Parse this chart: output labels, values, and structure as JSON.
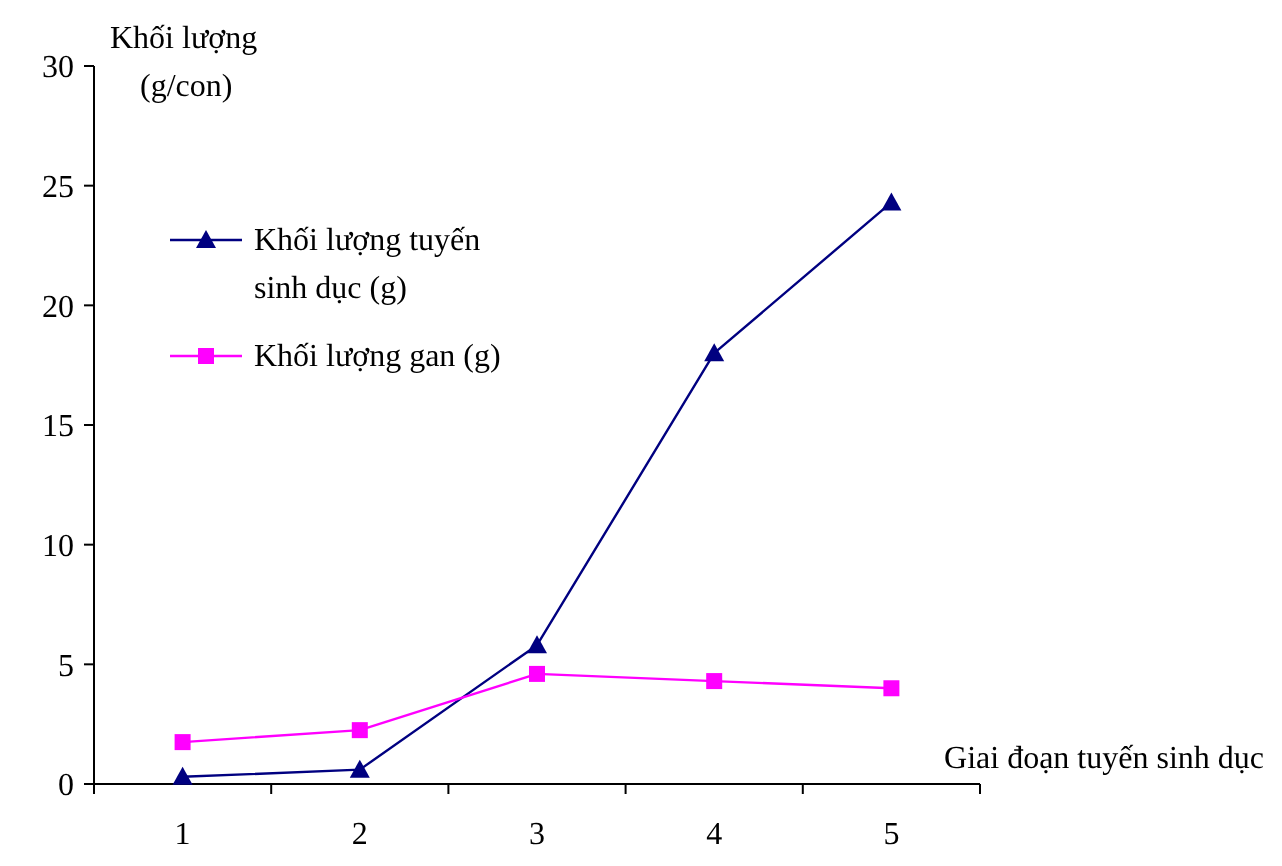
{
  "chart_data": {
    "type": "line",
    "ylabel": "Khối lượng\n(g/con)",
    "xlabel": "Giai đoạn tuyến sinh dục",
    "categories": [
      "1",
      "2",
      "3",
      "4",
      "5"
    ],
    "series": [
      {
        "name": "Khối lượng tuyến sinh dục (g)",
        "color": "#000080",
        "marker": "triangle",
        "values": [
          0.3,
          0.6,
          5.8,
          18,
          24.3
        ]
      },
      {
        "name": "Khối lượng gan (g)",
        "color": "#ff00ff",
        "marker": "square",
        "values": [
          1.75,
          2.25,
          4.6,
          4.3,
          4.0
        ]
      }
    ],
    "ylim": [
      0,
      30
    ],
    "yticks": [
      0,
      5,
      10,
      15,
      20,
      25,
      30
    ],
    "grid": false,
    "legend": "top left"
  }
}
